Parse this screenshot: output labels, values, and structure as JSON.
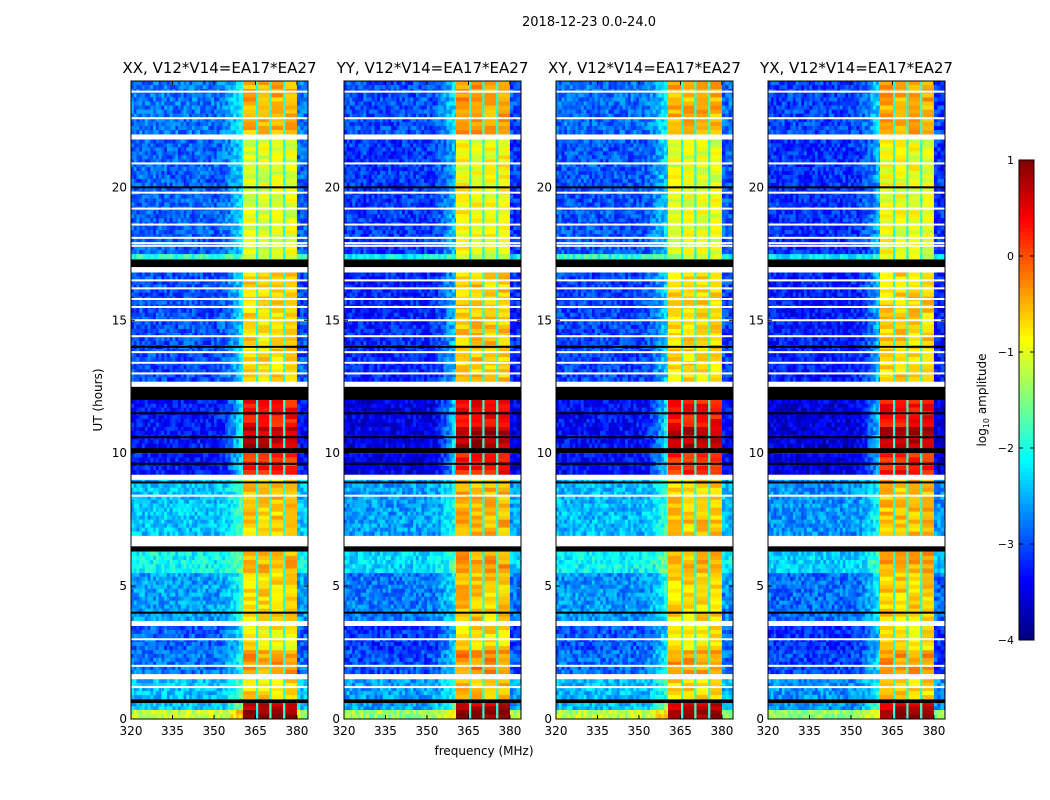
{
  "figure_title": "2018-12-23 0.0-24.0",
  "chart_data": {
    "type": "heatmap",
    "xlabel": "frequency (MHz)",
    "ylabel": "UT (hours)",
    "xlim": [
      320,
      384
    ],
    "ylim": [
      0,
      24
    ],
    "xticks": [
      320,
      335,
      350,
      365,
      380
    ],
    "yticks": [
      0,
      5,
      10,
      15,
      20
    ],
    "colormap": "jet",
    "colorbar": {
      "label_main": "log",
      "label_sub": "10",
      "label_rest": " amplitude",
      "range": [
        -4,
        1
      ],
      "ticks": [
        1,
        0,
        -1,
        -2,
        -3,
        -4
      ]
    },
    "rfi_bands_mhz": [
      [
        360.5,
        365.2
      ],
      [
        366.0,
        370.0
      ],
      [
        370.8,
        375.0
      ],
      [
        375.8,
        380.0
      ]
    ],
    "time_segments": [
      {
        "t": [
          0.0,
          0.35
        ],
        "bg": -1.4,
        "band": 0.9
      },
      {
        "t": [
          0.35,
          0.6
        ],
        "bg": -2.6,
        "band": 0.6
      },
      {
        "t": [
          0.6,
          0.75
        ],
        "flag": "black"
      },
      {
        "t": [
          0.75,
          1.5
        ],
        "bg": -2.6,
        "band": -0.7
      },
      {
        "t": [
          1.5,
          1.7
        ],
        "flag": "white"
      },
      {
        "t": [
          1.7,
          2.6
        ],
        "bg": -3.0,
        "band": -0.4
      },
      {
        "t": [
          2.6,
          3.5
        ],
        "bg": -3.1,
        "band": -0.8
      },
      {
        "t": [
          3.5,
          3.7
        ],
        "flag": "white"
      },
      {
        "t": [
          3.7,
          5.5
        ],
        "bg": -2.8,
        "band": -0.7
      },
      {
        "t": [
          5.5,
          6.3
        ],
        "bg": -2.3,
        "band": -0.5
      },
      {
        "t": [
          6.3,
          6.5
        ],
        "flag": "black"
      },
      {
        "t": [
          6.5,
          6.9
        ],
        "flag": "white"
      },
      {
        "t": [
          6.9,
          9.0
        ],
        "bg": -2.6,
        "band": -0.6
      },
      {
        "t": [
          9.0,
          9.2
        ],
        "flag": "white"
      },
      {
        "t": [
          9.2,
          10.0
        ],
        "bg": -3.5,
        "band": 0.2
      },
      {
        "t": [
          10.0,
          10.2
        ],
        "flag": "black"
      },
      {
        "t": [
          10.2,
          11.0
        ],
        "bg": -3.5,
        "band": 0.7
      },
      {
        "t": [
          11.0,
          12.0
        ],
        "bg": -3.5,
        "band": 0.3
      },
      {
        "t": [
          12.0,
          12.5
        ],
        "flag": "black"
      },
      {
        "t": [
          12.5,
          12.7
        ],
        "flag": "white"
      },
      {
        "t": [
          12.7,
          16.8
        ],
        "bg": -3.2,
        "band": -0.7
      },
      {
        "t": [
          16.8,
          17.0
        ],
        "flag": "white"
      },
      {
        "t": [
          17.0,
          17.3
        ],
        "flag": "black"
      },
      {
        "t": [
          17.3,
          17.5
        ],
        "bg": -2.1,
        "band": -1.2
      },
      {
        "t": [
          17.5,
          21.8
        ],
        "bg": -3.1,
        "band": -1.0
      },
      {
        "t": [
          21.8,
          22.0
        ],
        "flag": "white"
      },
      {
        "t": [
          22.0,
          24.0
        ],
        "bg": -3.0,
        "band": -0.5
      }
    ],
    "flagged_white_hours": [
      1.2,
      2.0,
      3.0,
      8.4,
      13.0,
      13.4,
      13.8,
      14.4,
      15.0,
      15.5,
      15.8,
      16.2,
      16.5,
      17.8,
      17.9,
      18.1,
      18.6,
      19.2,
      19.8,
      20.9,
      22.6,
      23.6
    ],
    "flagged_black_hours": [
      4.0,
      8.9,
      9.6,
      10.6,
      11.5,
      14.0,
      20.0
    ],
    "panels": [
      {
        "title": "XX, V12*V14=EA17*EA27",
        "bg_offset": 0.2,
        "band_offset": 0.0
      },
      {
        "title": "YY, V12*V14=EA17*EA27",
        "bg_offset": 0.0,
        "band_offset": 0.1
      },
      {
        "title": "XY, V12*V14=EA17*EA27",
        "bg_offset": 0.15,
        "band_offset": 0.0
      },
      {
        "title": "YX, V12*V14=EA17*EA27",
        "bg_offset": -0.05,
        "band_offset": 0.05
      }
    ]
  }
}
